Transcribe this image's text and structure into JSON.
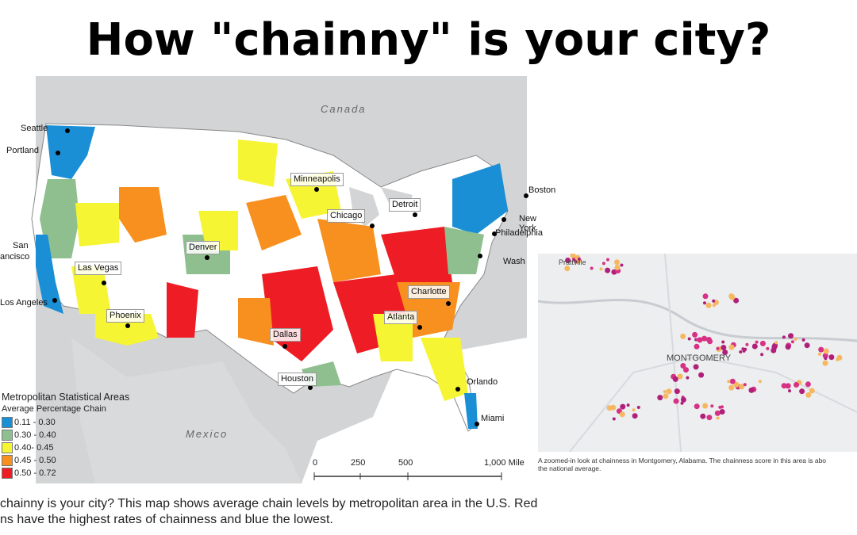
{
  "title": "How \"chainny\" is your city?",
  "caption": "chainny is your city? This map shows average chain levels by metropolitan area in the U.S. Red\nns have the highest rates of chainness and blue the lowest.",
  "map": {
    "regions": {
      "canada": "Canada",
      "mexico": "Mexico"
    },
    "cities": [
      {
        "id": "seattle",
        "name": "Seattle"
      },
      {
        "id": "portland",
        "name": "Portland"
      },
      {
        "id": "san-francisco-1",
        "name": "San"
      },
      {
        "id": "san-francisco-2",
        "name": "ancisco"
      },
      {
        "id": "los-angeles",
        "name": "Los Angeles"
      },
      {
        "id": "las-vegas",
        "name": "Las Vegas"
      },
      {
        "id": "phoenix",
        "name": "Phoenix"
      },
      {
        "id": "denver",
        "name": "Denver"
      },
      {
        "id": "minneapolis",
        "name": "Minneapolis"
      },
      {
        "id": "chicago",
        "name": "Chicago"
      },
      {
        "id": "detroit",
        "name": "Detroit"
      },
      {
        "id": "boston",
        "name": "Boston"
      },
      {
        "id": "new-york",
        "name": "New York"
      },
      {
        "id": "philadelphia",
        "name": "Philadelphia"
      },
      {
        "id": "washington",
        "name": "Wash"
      },
      {
        "id": "charlotte",
        "name": "Charlotte"
      },
      {
        "id": "atlanta",
        "name": "Atlanta"
      },
      {
        "id": "dallas",
        "name": "Dallas"
      },
      {
        "id": "houston",
        "name": "Houston"
      },
      {
        "id": "orlando",
        "name": "Orlando"
      },
      {
        "id": "miami",
        "name": "Miami"
      }
    ],
    "legend": {
      "title": "Metropolitan Statistical Areas",
      "subtitle": "Average Percentage Chain",
      "items": [
        {
          "label": "0.11 - 0.30",
          "color": "#1a8fd6"
        },
        {
          "label": "0.30 - 0.40",
          "color": "#8fbf8f"
        },
        {
          "label": "0.40- 0.45",
          "color": "#f5f534"
        },
        {
          "label": "0.45 - 0.50",
          "color": "#f7901e"
        },
        {
          "label": "0.50 - 0.72",
          "color": "#ee1c24"
        }
      ]
    },
    "scale": {
      "ticks": [
        "0",
        "250",
        "500",
        "1,000 Mile"
      ]
    }
  },
  "inset": {
    "labels": {
      "city": "MONTGOMERY",
      "town": "Prattville"
    },
    "caption": "A zoomed-in look at chainness in Montgomery, Alabama. The chainness score in this area is abo\nthe national average."
  },
  "colors": {
    "blue": "#1a8fd6",
    "green": "#8fbf8f",
    "yellow": "#f5f534",
    "orange": "#f7901e",
    "red": "#ee1c24",
    "land": "#ffffff",
    "outside": "#d2d3d5",
    "water": "#dfe6ee"
  }
}
